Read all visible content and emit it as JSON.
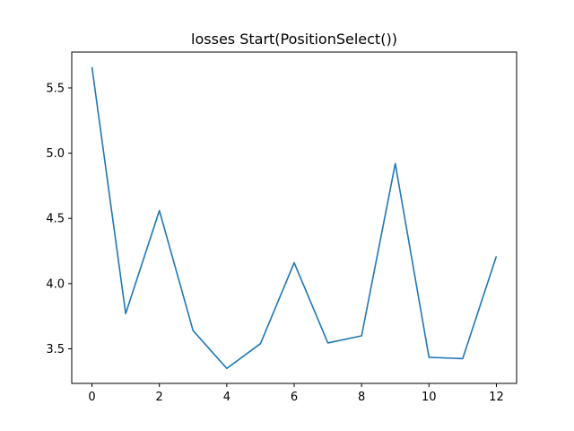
{
  "chart_data": {
    "type": "line",
    "title": "losses Start(PositionSelect())",
    "xlabel": "",
    "ylabel": "",
    "xlim": [
      -0.6,
      12.6
    ],
    "ylim": [
      3.235,
      5.775
    ],
    "xticks": [
      0,
      2,
      4,
      6,
      8,
      10,
      12
    ],
    "xtick_labels": [
      "0",
      "2",
      "4",
      "6",
      "8",
      "10",
      "12"
    ],
    "yticks": [
      3.5,
      4.0,
      4.5,
      5.0,
      5.5
    ],
    "ytick_labels": [
      "3.5",
      "4.0",
      "4.5",
      "5.0",
      "5.5"
    ],
    "grid": false,
    "series": [
      {
        "color": "#1f77b4",
        "x": [
          0,
          1,
          2,
          3,
          4,
          5,
          6,
          7,
          8,
          9,
          10,
          11,
          12
        ],
        "y": [
          5.66,
          3.77,
          4.56,
          3.64,
          3.35,
          3.54,
          4.16,
          3.545,
          3.6,
          4.92,
          3.435,
          3.425,
          4.21
        ]
      }
    ]
  }
}
